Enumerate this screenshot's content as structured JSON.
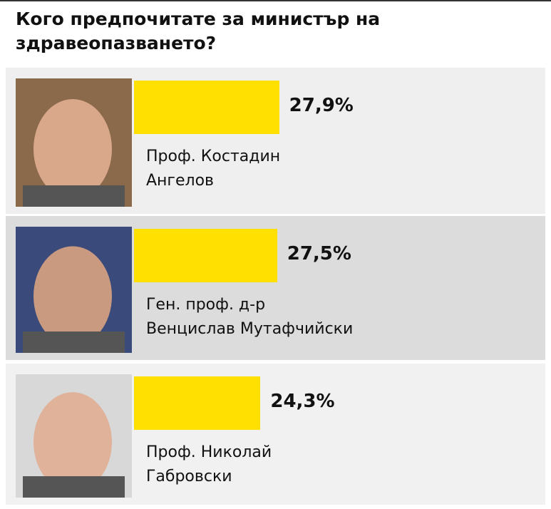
{
  "chart_data": {
    "type": "bar",
    "title": "Кого предпочитате за министър на здравеопазването?",
    "categories": [
      "Проф. Костадин\nАнгелов",
      "Ген. проф. д-р\nВенцислав Мутафчийски",
      "Проф. Николай\nГабровски"
    ],
    "values": [
      27.9,
      27.5,
      24.3
    ],
    "value_labels": [
      "27,9%",
      "27,5%",
      "24,3%"
    ],
    "color": "#ffe000"
  }
}
